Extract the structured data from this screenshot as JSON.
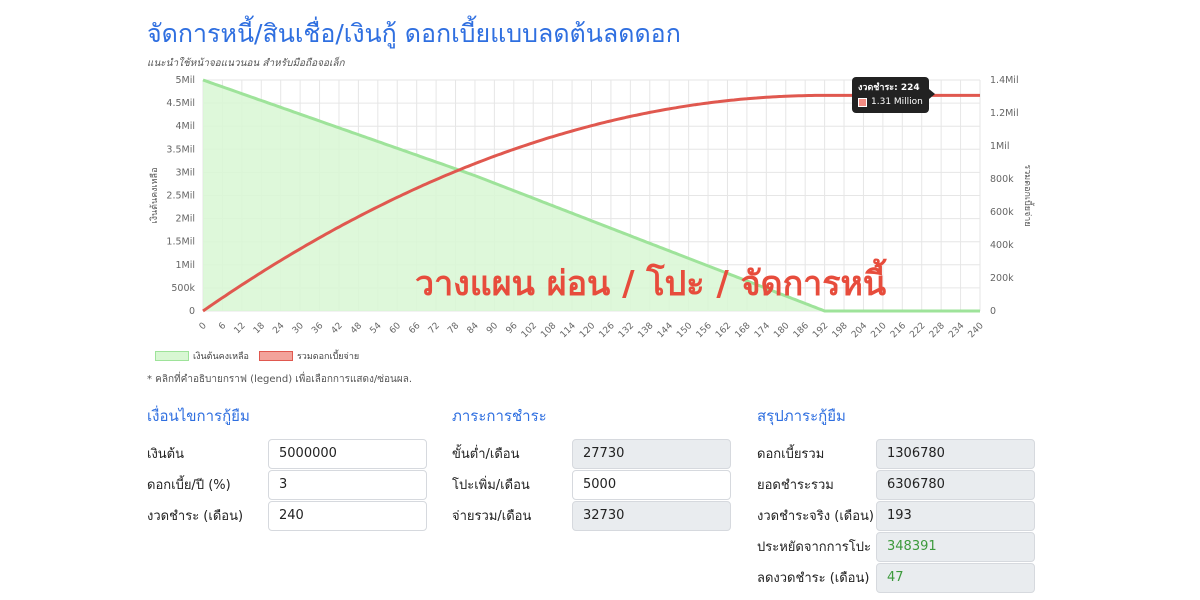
{
  "page": {
    "title": "จัดการหนี้/สินเชื่อ/เงินกู้ ดอกเบี้ยแบบลดต้นลดดอก",
    "subtitle": "แนะนำใช้หน้าจอแนวนอน สำหรับมือถือจอเล็ก",
    "overlay_text": "วางแผน ผ่อน / โปะ / จัดการหนี้",
    "legend_note": "* คลิกที่คำอธิบายกราฟ (legend) เพื่อเลือกการแสดง/ซ่อนผล."
  },
  "chart_data": {
    "type": "line",
    "x": [
      0,
      192,
      224,
      240
    ],
    "series": [
      {
        "name": "เงินต้นคงเหลือ",
        "axis": "left",
        "fill": true,
        "color": "#7ee07e",
        "points": [
          [
            0,
            5000000
          ],
          [
            84,
            2930000
          ],
          [
            192,
            0
          ],
          [
            240,
            0
          ]
        ]
      },
      {
        "name": "รวมดอกเบี้ยจ่าย",
        "axis": "right",
        "fill": false,
        "color": "#e0584f",
        "points": [
          [
            0,
            0
          ],
          [
            84,
            860000
          ],
          [
            192,
            1306780
          ],
          [
            240,
            1306780
          ]
        ]
      }
    ],
    "xlim": [
      0,
      240
    ],
    "x_ticks": [
      "0",
      "6",
      "12",
      "18",
      "24",
      "30",
      "36",
      "42",
      "48",
      "54",
      "60",
      "66",
      "72",
      "78",
      "84",
      "90",
      "96",
      "102",
      "108",
      "114",
      "120",
      "126",
      "132",
      "138",
      "144",
      "150",
      "156",
      "162",
      "168",
      "174",
      "180",
      "186",
      "192",
      "198",
      "204",
      "210",
      "216",
      "222",
      "228",
      "234",
      "240"
    ],
    "y_left": {
      "label": "เงินต้นคงเหลือ",
      "ylim": [
        0,
        5000000
      ],
      "ticks": [
        "0",
        "500k",
        "1Mil",
        "1.5Mil",
        "2Mil",
        "2.5Mil",
        "3Mil",
        "3.5Mil",
        "4Mil",
        "4.5Mil",
        "5Mil"
      ]
    },
    "y_right": {
      "label": "รวมดอกเบี้ยจ่าย",
      "ylim": [
        0,
        1400000
      ],
      "ticks": [
        "0",
        "200k",
        "400k",
        "600k",
        "800k",
        "1Mil",
        "1.2Mil",
        "1.4Mil"
      ]
    },
    "grid": true,
    "legend": "bottom-left",
    "tooltip": {
      "title": "งวดชำระ: 224",
      "value": "1.31 Million",
      "x": 224
    }
  },
  "loan_conditions": {
    "heading": "เงื่อนไขการกู้ยืม",
    "principal_label": "เงินต้น",
    "principal_value": "5000000",
    "rate_label": "ดอกเบี้ย/ปี (%)",
    "rate_value": "3",
    "term_label": "งวดชำระ (เดือน)",
    "term_value": "240"
  },
  "payment": {
    "heading": "ภาระการชำระ",
    "min_label": "ขั้นต่ำ/เดือน",
    "min_value": "27730",
    "extra_label": "โปะเพิ่ม/เดือน",
    "extra_value": "5000",
    "total_label": "จ่ายรวม/เดือน",
    "total_value": "32730"
  },
  "summary": {
    "heading": "สรุปภาระกู้ยืม",
    "interest_label": "ดอกเบี้ยรวม",
    "interest_value": "1306780",
    "paid_label": "ยอดชำระรวม",
    "paid_value": "6306780",
    "actual_term_label": "งวดชำระจริง (เดือน)",
    "actual_term_value": "193",
    "saved_label": "ประหยัดจากการโปะ",
    "saved_value": "348391",
    "reduced_label": "ลดงวดชำระ (เดือน)",
    "reduced_value": "47"
  }
}
